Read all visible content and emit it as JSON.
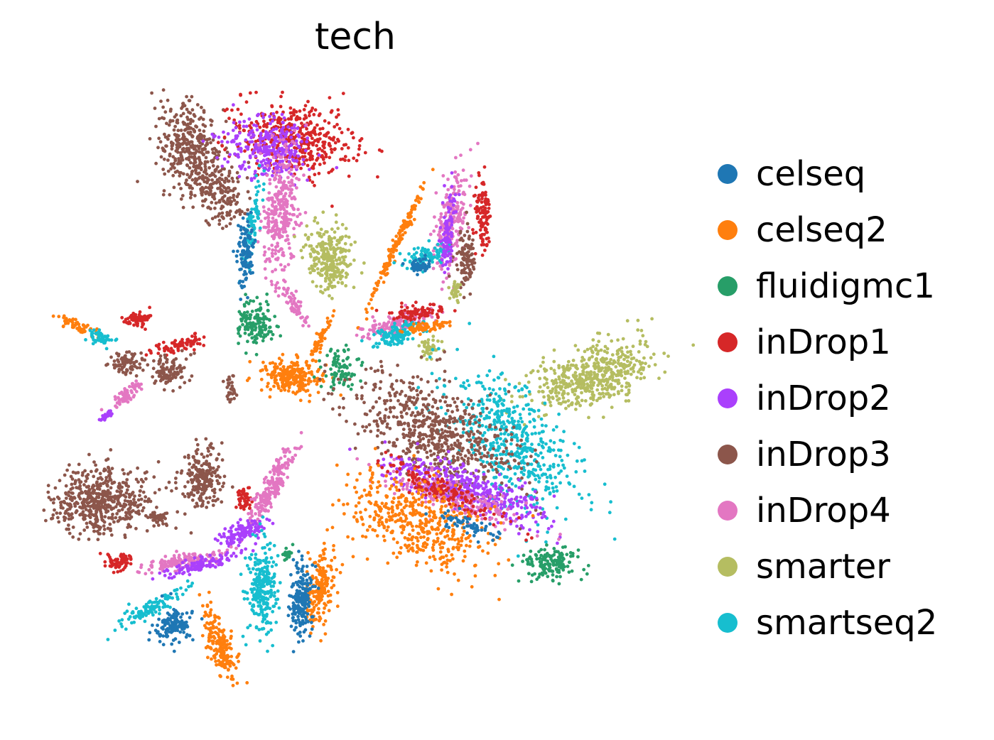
{
  "chart_data": {
    "type": "scatter",
    "title": "tech",
    "xlabel": "",
    "ylabel": "",
    "axes_visible": false,
    "grid": false,
    "legend_position": "right",
    "series": [
      {
        "name": "celseq",
        "color": "#1f77b4"
      },
      {
        "name": "celseq2",
        "color": "#ff7f0e"
      },
      {
        "name": "fluidigmc1",
        "color": "#279e68"
      },
      {
        "name": "inDrop1",
        "color": "#d62728"
      },
      {
        "name": "inDrop2",
        "color": "#aa40fc"
      },
      {
        "name": "inDrop3",
        "color": "#8c564b"
      },
      {
        "name": "inDrop4",
        "color": "#e377c2"
      },
      {
        "name": "smarter",
        "color": "#b5bd61"
      },
      {
        "name": "smartseq2",
        "color": "#17becf"
      }
    ]
  }
}
